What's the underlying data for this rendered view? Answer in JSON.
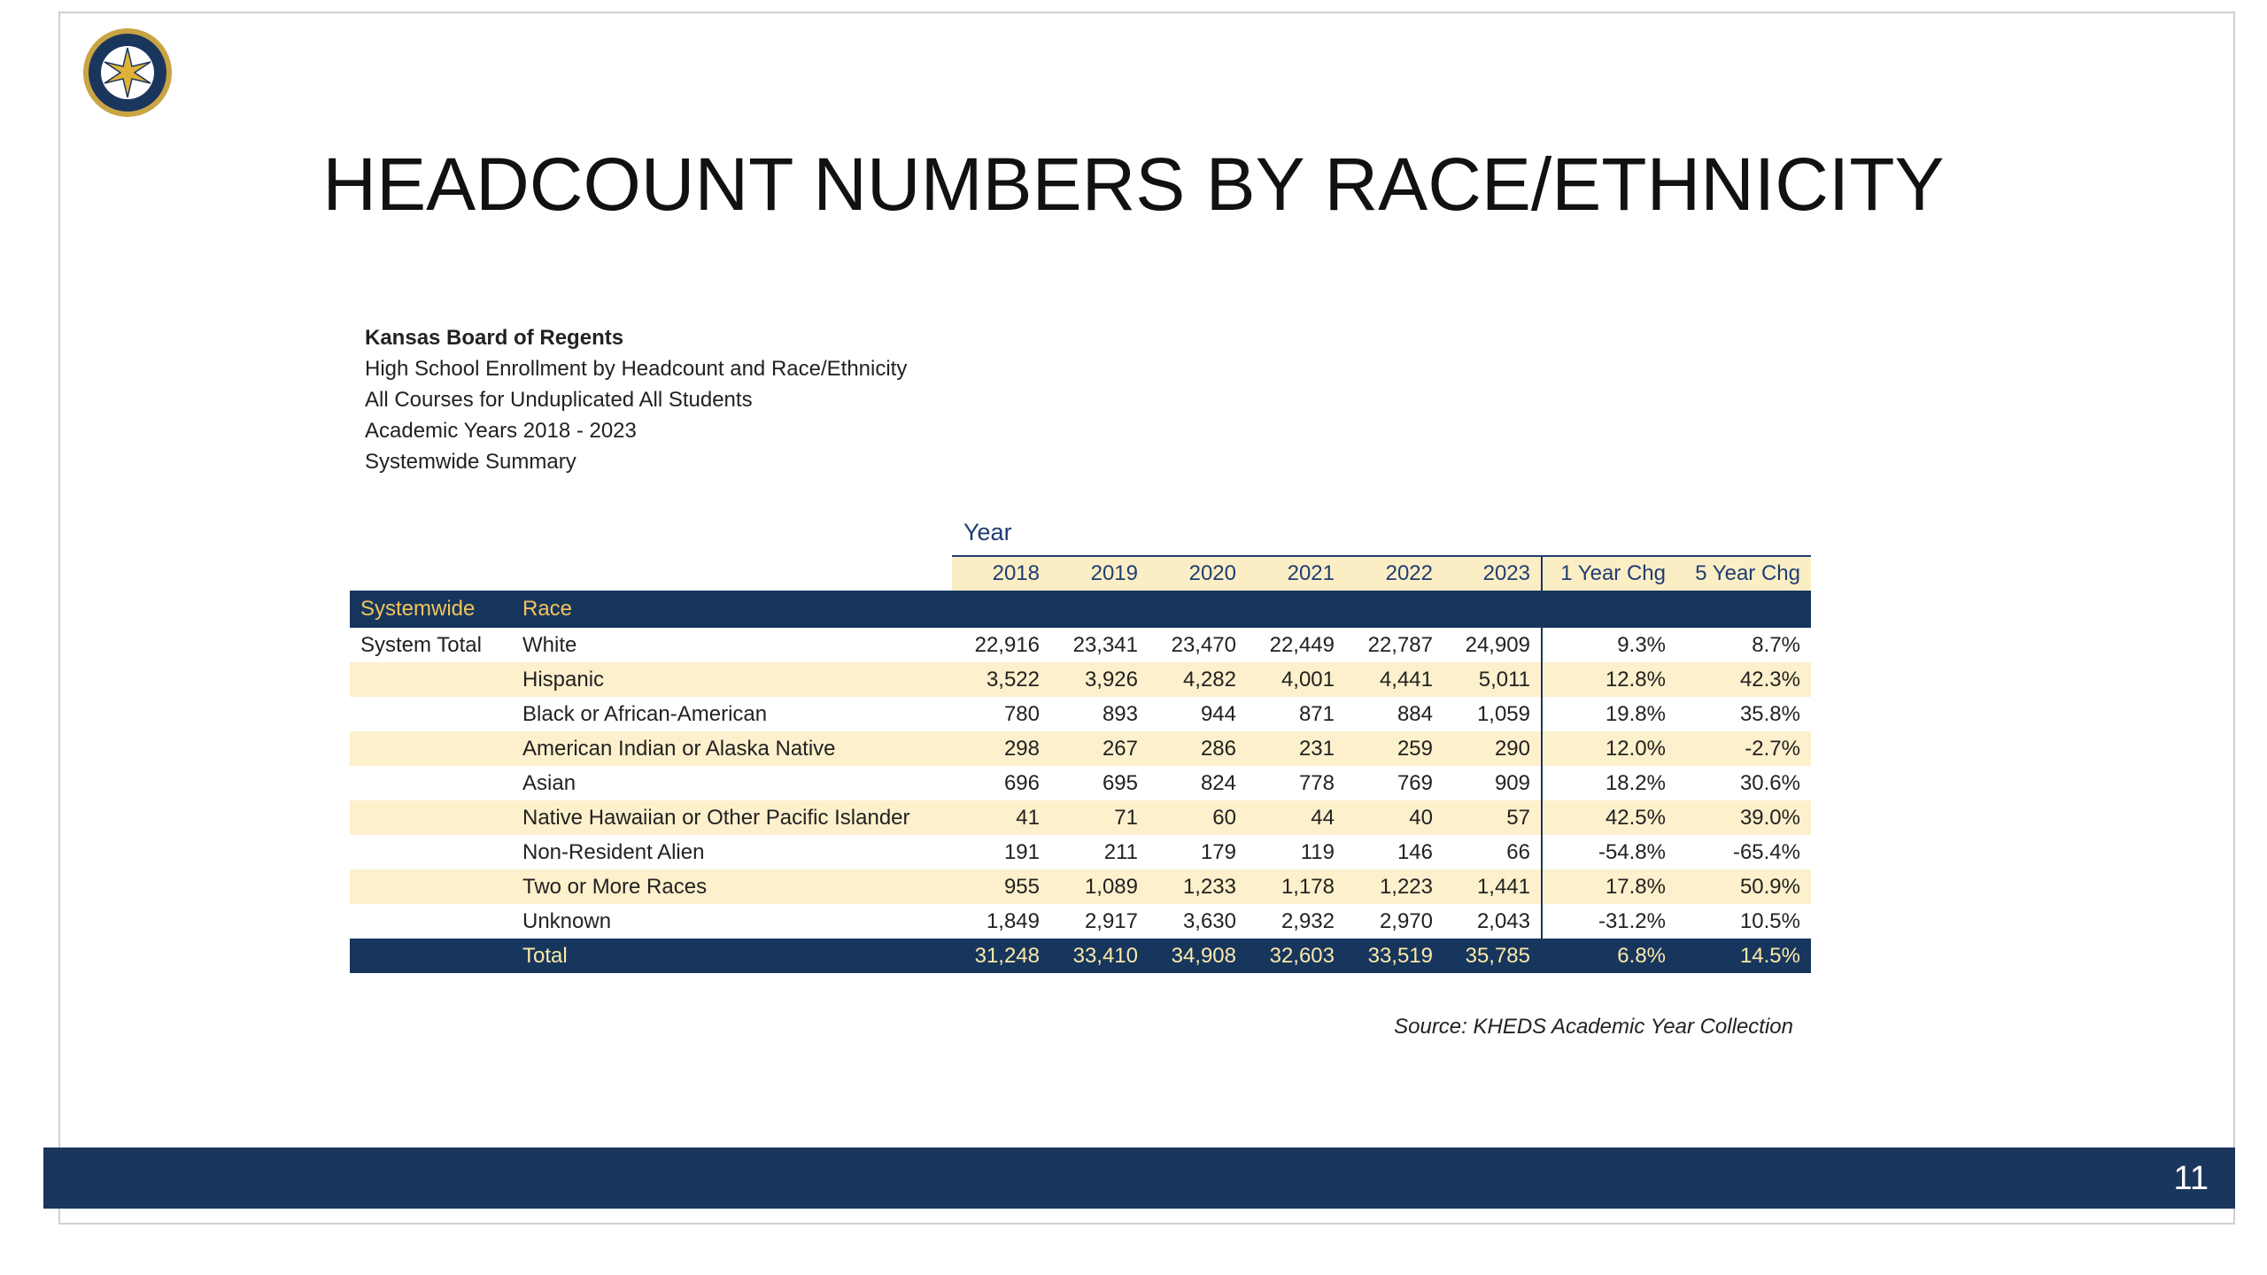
{
  "header": {
    "title": "HEADCOUNT NUMBERS BY RACE/ETHNICITY",
    "page_number": "11"
  },
  "report": {
    "organization": "Kansas Board of Regents",
    "lines": [
      "High School Enrollment by Headcount and Race/Ethnicity",
      "All Courses for Unduplicated All Students",
      "Academic Years 2018 - 2023",
      "Systemwide Summary"
    ]
  },
  "table": {
    "year_label": "Year",
    "columns": [
      "2018",
      "2019",
      "2020",
      "2021",
      "2022",
      "2023",
      "1 Year Chg",
      "5 Year Chg"
    ],
    "group_header": [
      "Systemwide",
      "Race"
    ],
    "rows": [
      {
        "group": "System Total",
        "race": "White",
        "cells": [
          "22,916",
          "23,341",
          "23,470",
          "22,449",
          "22,787",
          "24,909",
          "9.3%",
          "8.7%"
        ]
      },
      {
        "race": "Hispanic",
        "cells": [
          "3,522",
          "3,926",
          "4,282",
          "4,001",
          "4,441",
          "5,011",
          "12.8%",
          "42.3%"
        ]
      },
      {
        "race": "Black or African-American",
        "cells": [
          "780",
          "893",
          "944",
          "871",
          "884",
          "1,059",
          "19.8%",
          "35.8%"
        ]
      },
      {
        "race": "American Indian or Alaska Native",
        "cells": [
          "298",
          "267",
          "286",
          "231",
          "259",
          "290",
          "12.0%",
          "-2.7%"
        ]
      },
      {
        "race": "Asian",
        "cells": [
          "696",
          "695",
          "824",
          "778",
          "769",
          "909",
          "18.2%",
          "30.6%"
        ]
      },
      {
        "race": "Native Hawaiian or Other Pacific Islander",
        "cells": [
          "41",
          "71",
          "60",
          "44",
          "40",
          "57",
          "42.5%",
          "39.0%"
        ]
      },
      {
        "race": "Non-Resident Alien",
        "cells": [
          "191",
          "211",
          "179",
          "119",
          "146",
          "66",
          "-54.8%",
          "-65.4%"
        ]
      },
      {
        "race": "Two or More Races",
        "cells": [
          "955",
          "1,089",
          "1,233",
          "1,178",
          "1,223",
          "1,441",
          "17.8%",
          "50.9%"
        ]
      },
      {
        "race": "Unknown",
        "cells": [
          "1,849",
          "2,917",
          "3,630",
          "2,932",
          "2,970",
          "2,043",
          "-31.2%",
          "10.5%"
        ]
      }
    ],
    "total": {
      "race": "Total",
      "cells": [
        "31,248",
        "33,410",
        "34,908",
        "32,603",
        "33,519",
        "35,785",
        "6.8%",
        "14.5%"
      ]
    }
  },
  "source": "Source: KHEDS Academic Year Collection"
}
